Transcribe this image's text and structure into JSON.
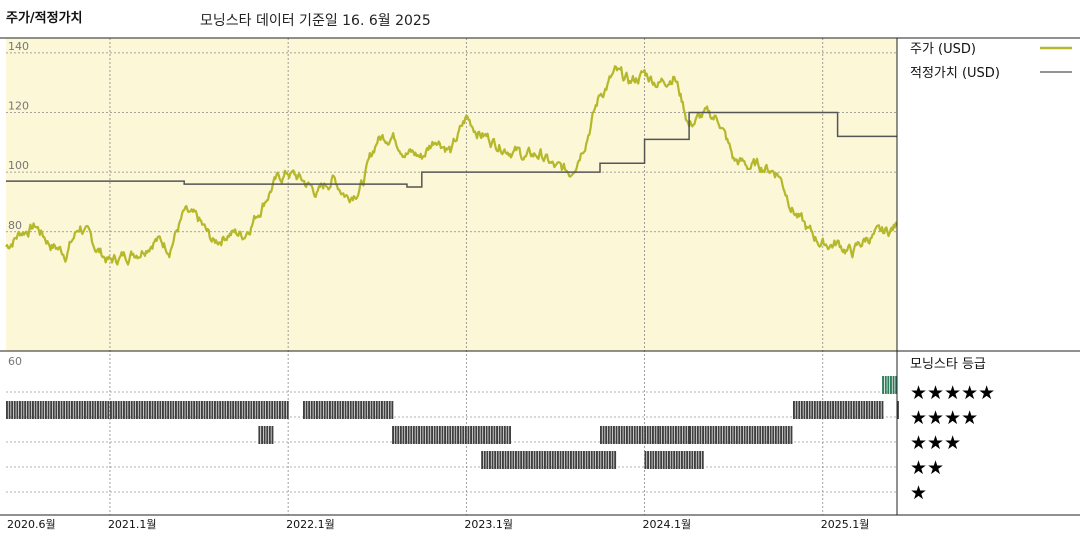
{
  "title": "주가/적정가치",
  "subtitle": "모닝스타 데이터 기준일 16. 6월 2025",
  "colors": {
    "price": "#b5b82a",
    "fair_value": "#555555",
    "upper_panel_bg": "#fbf7d7",
    "rating_bar": "#3f3f3f",
    "rating_bar_5star": "#2f7d5b"
  },
  "chart_data": [
    {
      "type": "line",
      "title": "",
      "ylim": [
        40,
        145
      ],
      "yticks": [
        140,
        120,
        100,
        80
      ],
      "ytick_labels": [
        "140",
        "120",
        "100",
        "80"
      ],
      "xlim": [
        "2020-06",
        "2025-06"
      ],
      "xticks": [
        "2020-06",
        "2021-01",
        "2022-01",
        "2023-01",
        "2024-01",
        "2025-01"
      ],
      "xtick_labels": [
        "2020.6월",
        "2021.1월",
        "2022.1월",
        "2023.1월",
        "2024.1월",
        "2025.1월"
      ],
      "grid": true,
      "legend_position": "right",
      "series": [
        {
          "name": "주가 (USD)",
          "style": "line",
          "x": [
            "2020-06",
            "2020-07",
            "2020-08",
            "2020-09",
            "2020-10",
            "2020-11",
            "2020-12",
            "2021-01",
            "2021-02",
            "2021-03",
            "2021-04",
            "2021-05",
            "2021-06",
            "2021-07",
            "2021-08",
            "2021-09",
            "2021-10",
            "2021-11",
            "2021-12",
            "2022-01",
            "2022-02",
            "2022-03",
            "2022-04",
            "2022-05",
            "2022-06",
            "2022-07",
            "2022-08",
            "2022-09",
            "2022-10",
            "2022-11",
            "2022-12",
            "2023-01",
            "2023-02",
            "2023-03",
            "2023-04",
            "2023-05",
            "2023-06",
            "2023-07",
            "2023-08",
            "2023-09",
            "2023-10",
            "2023-11",
            "2023-12",
            "2024-01",
            "2024-02",
            "2024-03",
            "2024-04",
            "2024-05",
            "2024-06",
            "2024-07",
            "2024-08",
            "2024-09",
            "2024-10",
            "2024-11",
            "2024-12",
            "2025-01",
            "2025-02",
            "2025-03",
            "2025-04",
            "2025-05",
            "2025-06"
          ],
          "values": [
            75,
            80,
            82,
            76,
            73,
            82,
            75,
            70,
            72,
            74,
            78,
            75,
            86,
            83,
            76,
            80,
            79,
            87,
            96,
            100,
            97,
            93,
            98,
            92,
            96,
            111,
            113,
            107,
            105,
            112,
            107,
            118,
            113,
            110,
            108,
            105,
            106,
            101,
            100,
            111,
            126,
            133,
            130,
            133,
            130,
            133,
            116,
            119,
            118,
            104,
            102,
            102,
            100,
            88,
            80,
            76,
            76,
            73,
            78,
            79,
            82
          ]
        },
        {
          "name": "적정가치 (USD)",
          "style": "step",
          "x": [
            "2020-06",
            "2021-06",
            "2022-09",
            "2022-10",
            "2023-10",
            "2024-01",
            "2024-04",
            "2025-02",
            "2025-06"
          ],
          "values": [
            97,
            96,
            95,
            100,
            103,
            111,
            120,
            112,
            112
          ]
        }
      ]
    },
    {
      "type": "bar",
      "title": "모닝스타 등급",
      "categories": [
        "★★★★★",
        "★★★★",
        "★★★",
        "★★",
        "★"
      ],
      "xlim": [
        "2020-06",
        "2025-06"
      ],
      "rating_periods": [
        {
          "rating": 4,
          "start": "2020-06",
          "end": "2022-01"
        },
        {
          "rating": 3,
          "start": "2021-11",
          "end": "2021-12"
        },
        {
          "rating": 4,
          "start": "2022-02",
          "end": "2022-08"
        },
        {
          "rating": 3,
          "start": "2022-08",
          "end": "2023-03"
        },
        {
          "rating": 2,
          "start": "2023-02",
          "end": "2023-05"
        },
        {
          "rating": 3,
          "start": "2023-03",
          "end": "2023-04"
        },
        {
          "rating": 2,
          "start": "2023-05",
          "end": "2023-11"
        },
        {
          "rating": 3,
          "start": "2023-10",
          "end": "2024-02"
        },
        {
          "rating": 2,
          "start": "2024-01",
          "end": "2024-05"
        },
        {
          "rating": 3,
          "start": "2024-02",
          "end": "2024-04"
        },
        {
          "rating": 3,
          "start": "2024-04",
          "end": "2024-11"
        },
        {
          "rating": 4,
          "start": "2024-11",
          "end": "2025-05"
        },
        {
          "rating": 5,
          "start": "2025-05",
          "end": "2025-06"
        },
        {
          "rating": 4,
          "start": "2025-06",
          "end": "2025-06"
        }
      ]
    }
  ]
}
